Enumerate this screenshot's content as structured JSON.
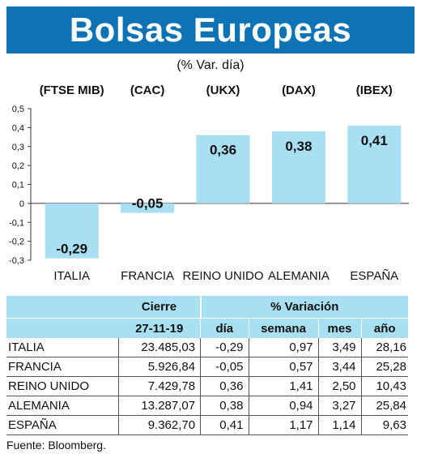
{
  "header": {
    "title": "Bolsas Europeas",
    "subtitle": "(% Var. día)"
  },
  "chart_data": {
    "type": "bar",
    "categories": [
      "ITALIA",
      "FRANCIA",
      "REINO UNIDO",
      "ALEMANIA",
      "ESPAÑA"
    ],
    "indices": [
      "(FTSE MIB)",
      "(CAC)",
      "(UKX)",
      "(DAX)",
      "(IBEX)"
    ],
    "values": [
      -0.29,
      -0.05,
      0.36,
      0.38,
      0.41
    ],
    "value_labels": [
      "-0,29",
      "-0,05",
      "0,36",
      "0,38",
      "0,41"
    ],
    "yticks": [
      "0,5",
      "0,4",
      "0,3",
      "0,2",
      "0,1",
      "0",
      "-0,1",
      "-0,2",
      "-0,3"
    ],
    "ytick_values": [
      0.5,
      0.4,
      0.3,
      0.2,
      0.1,
      0,
      -0.1,
      -0.2,
      -0.3
    ],
    "ylim": [
      -0.3,
      0.5
    ],
    "bar_color": "#a9dff2",
    "grid": false
  },
  "table": {
    "headers": {
      "cierre": "Cierre",
      "variacion": "% Variación",
      "date": "27-11-19",
      "dia": "día",
      "semana": "semana",
      "mes": "mes",
      "anio": "año"
    },
    "rows": [
      {
        "name": "ITALIA",
        "cierre": "23.485,03",
        "dia": "-0,29",
        "semana": "0,97",
        "mes": "3,49",
        "anio": "28,16"
      },
      {
        "name": "FRANCIA",
        "cierre": "5.926,84",
        "dia": "-0,05",
        "semana": "0,57",
        "mes": "3,44",
        "anio": "25,28"
      },
      {
        "name": "REINO UNIDO",
        "cierre": "7.429,78",
        "dia": "0,36",
        "semana": "1,41",
        "mes": "2,50",
        "anio": "10,43"
      },
      {
        "name": "ALEMANIA",
        "cierre": "13.287,07",
        "dia": "0,38",
        "semana": "0,94",
        "mes": "3,27",
        "anio": "25,84"
      },
      {
        "name": "ESPAÑA",
        "cierre": "9.362,70",
        "dia": "0,41",
        "semana": "1,17",
        "mes": "1,14",
        "anio": "9,63"
      }
    ]
  },
  "source": "Fuente: Bloomberg.",
  "colors": {
    "header_bg": "#0d73b5",
    "accent": "#a9dff2"
  }
}
